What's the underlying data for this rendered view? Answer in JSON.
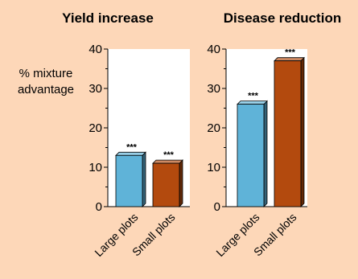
{
  "chart_data": [
    {
      "type": "bar",
      "title": "Yield increase",
      "ylabel": "% mixture advantage",
      "ylabel_lines": [
        "% mixture",
        "advantage"
      ],
      "ylim": [
        0,
        40
      ],
      "yticks": [
        "0",
        "10",
        "20",
        "30",
        "40"
      ],
      "categories": [
        "Large plots",
        "Small plots"
      ],
      "values": [
        13,
        11
      ],
      "significance": [
        "***",
        "***"
      ],
      "colors": [
        "#5fb3d8",
        "#b34a0e"
      ]
    },
    {
      "type": "bar",
      "title": "Disease reduction",
      "ylabel": "",
      "ylim": [
        0,
        40
      ],
      "yticks": [
        "0",
        "10",
        "20",
        "30",
        "40"
      ],
      "categories": [
        "Large plots",
        "Small plots"
      ],
      "values": [
        26,
        37
      ],
      "significance": [
        "***",
        "***"
      ],
      "colors": [
        "#5fb3d8",
        "#b34a0e"
      ]
    }
  ]
}
